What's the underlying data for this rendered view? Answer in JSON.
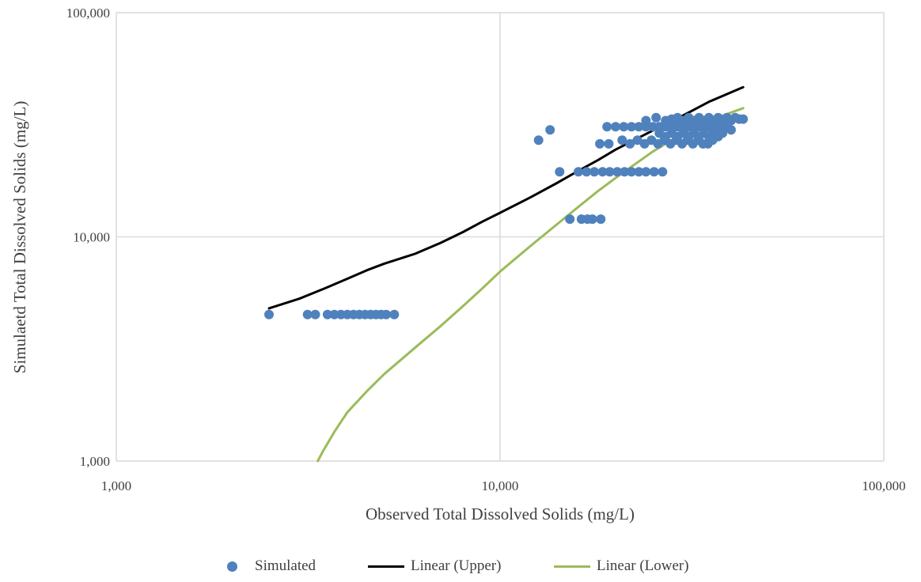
{
  "chart_data": {
    "type": "scatter",
    "xlabel": "Observed Total Dissolved Solids (mg/L)",
    "ylabel": "Simulaetd Total Dissolved Solids (mg/L)",
    "x_scale": "log",
    "y_scale": "log",
    "xlim": [
      1000,
      100000
    ],
    "ylim": [
      1000,
      100000
    ],
    "x_ticks": [
      "1,000",
      "10,000",
      "100,000"
    ],
    "y_ticks": [
      "1,000",
      "10,000",
      "100,000"
    ],
    "grid": true,
    "legend_position": "bottom",
    "series": [
      {
        "name": "Simulated",
        "kind": "scatter",
        "color": "#4f81bd",
        "points": [
          [
            2500,
            4500
          ],
          [
            3150,
            4500
          ],
          [
            3300,
            4500
          ],
          [
            3550,
            4500
          ],
          [
            3700,
            4500
          ],
          [
            3850,
            4500
          ],
          [
            4000,
            4500
          ],
          [
            4150,
            4500
          ],
          [
            4300,
            4500
          ],
          [
            4450,
            4500
          ],
          [
            4600,
            4500
          ],
          [
            4750,
            4500
          ],
          [
            4900,
            4500
          ],
          [
            5050,
            4500
          ],
          [
            5300,
            4500
          ],
          [
            12600,
            27000
          ],
          [
            13500,
            30000
          ],
          [
            14300,
            19500
          ],
          [
            15200,
            12000
          ],
          [
            16300,
            12000
          ],
          [
            16900,
            12000
          ],
          [
            17400,
            12000
          ],
          [
            18300,
            12000
          ],
          [
            16000,
            19500
          ],
          [
            16800,
            19500
          ],
          [
            17600,
            19500
          ],
          [
            18500,
            19500
          ],
          [
            19300,
            19500
          ],
          [
            20200,
            19500
          ],
          [
            21100,
            19500
          ],
          [
            22000,
            19500
          ],
          [
            23000,
            19500
          ],
          [
            24000,
            19500
          ],
          [
            25200,
            19500
          ],
          [
            26500,
            19500
          ],
          [
            18200,
            26000
          ],
          [
            19200,
            26000
          ],
          [
            20800,
            27000
          ],
          [
            21800,
            26000
          ],
          [
            22800,
            27000
          ],
          [
            23800,
            26000
          ],
          [
            24800,
            27000
          ],
          [
            25800,
            26000
          ],
          [
            26800,
            27000
          ],
          [
            27800,
            26000
          ],
          [
            28800,
            27000
          ],
          [
            29800,
            26000
          ],
          [
            30800,
            27000
          ],
          [
            31800,
            26000
          ],
          [
            32800,
            27000
          ],
          [
            33800,
            26000
          ],
          [
            34800,
            26000
          ],
          [
            35800,
            27000
          ],
          [
            19000,
            31000
          ],
          [
            20000,
            31000
          ],
          [
            21000,
            31000
          ],
          [
            22000,
            31000
          ],
          [
            23000,
            31000
          ],
          [
            24000,
            31000
          ],
          [
            25000,
            31000
          ],
          [
            26000,
            31000
          ],
          [
            27000,
            31000
          ],
          [
            28000,
            31000
          ],
          [
            29000,
            31000
          ],
          [
            30000,
            31000
          ],
          [
            31000,
            31000
          ],
          [
            32000,
            31000
          ],
          [
            33000,
            31000
          ],
          [
            34000,
            31000
          ],
          [
            35000,
            31000
          ],
          [
            36000,
            31000
          ],
          [
            37000,
            31000
          ],
          [
            38000,
            31000
          ],
          [
            39000,
            31000
          ],
          [
            40000,
            30000
          ],
          [
            24000,
            33000
          ],
          [
            25500,
            34000
          ],
          [
            27000,
            33000
          ],
          [
            28000,
            33500
          ],
          [
            29000,
            34000
          ],
          [
            30000,
            33000
          ],
          [
            31000,
            34000
          ],
          [
            32000,
            33000
          ],
          [
            33000,
            34000
          ],
          [
            34000,
            33000
          ],
          [
            35000,
            34000
          ],
          [
            36000,
            33000
          ],
          [
            37000,
            34000
          ],
          [
            38000,
            33000
          ],
          [
            39000,
            34000
          ],
          [
            40000,
            33000
          ],
          [
            41000,
            34000
          ],
          [
            42000,
            33500
          ],
          [
            43000,
            33500
          ],
          [
            26000,
            29000
          ],
          [
            27000,
            28000
          ],
          [
            28000,
            29000
          ],
          [
            29000,
            28000
          ],
          [
            30000,
            29000
          ],
          [
            31000,
            28000
          ],
          [
            32000,
            29000
          ],
          [
            33000,
            28000
          ],
          [
            34000,
            29000
          ],
          [
            35000,
            28000
          ],
          [
            36000,
            29000
          ],
          [
            37000,
            28000
          ],
          [
            38000,
            29000
          ],
          [
            28500,
            32000
          ],
          [
            29500,
            32500
          ],
          [
            30500,
            32000
          ],
          [
            31500,
            32500
          ],
          [
            32500,
            32000
          ],
          [
            33500,
            32500
          ],
          [
            34500,
            32000
          ],
          [
            35500,
            32500
          ],
          [
            36500,
            32000
          ],
          [
            37500,
            32500
          ]
        ]
      },
      {
        "name": "Linear (Upper)",
        "kind": "line",
        "color": "#000000",
        "points": [
          [
            2500,
            4800
          ],
          [
            3000,
            5300
          ],
          [
            3500,
            5900
          ],
          [
            4000,
            6500
          ],
          [
            4500,
            7100
          ],
          [
            5000,
            7600
          ],
          [
            6000,
            8400
          ],
          [
            7000,
            9400
          ],
          [
            8000,
            10500
          ],
          [
            9000,
            11700
          ],
          [
            10000,
            12800
          ],
          [
            12000,
            15000
          ],
          [
            14000,
            17300
          ],
          [
            16000,
            19700
          ],
          [
            18000,
            22000
          ],
          [
            20000,
            24500
          ],
          [
            25000,
            29800
          ],
          [
            30000,
            34800
          ],
          [
            35000,
            40000
          ],
          [
            43000,
            46500
          ]
        ]
      },
      {
        "name": "Linear (Lower)",
        "kind": "line",
        "color": "#9bbb59",
        "points": [
          [
            3350,
            1000
          ],
          [
            3450,
            1100
          ],
          [
            3700,
            1350
          ],
          [
            4000,
            1650
          ],
          [
            4500,
            2050
          ],
          [
            5000,
            2450
          ],
          [
            6000,
            3200
          ],
          [
            7000,
            4000
          ],
          [
            8000,
            4900
          ],
          [
            9000,
            5900
          ],
          [
            10000,
            7000
          ],
          [
            12000,
            9100
          ],
          [
            14000,
            11300
          ],
          [
            16000,
            13600
          ],
          [
            18000,
            16000
          ],
          [
            20000,
            18300
          ],
          [
            25000,
            24000
          ],
          [
            30000,
            29000
          ],
          [
            35000,
            33000
          ],
          [
            43000,
            37500
          ]
        ]
      }
    ]
  }
}
